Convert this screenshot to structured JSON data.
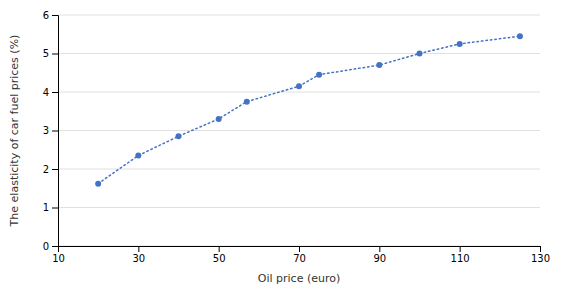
{
  "chart_data": {
    "type": "line",
    "x": [
      20,
      30,
      40,
      50,
      57,
      70,
      75,
      90,
      100,
      110,
      125
    ],
    "values": [
      1.62,
      2.35,
      2.85,
      3.3,
      3.75,
      4.15,
      4.45,
      4.7,
      5.0,
      5.25,
      5.45
    ],
    "xlabel": "Oil price (euro)",
    "ylabel": "The elasticity of car fuel prices (%)",
    "xlim": [
      10,
      130
    ],
    "ylim": [
      0,
      6
    ],
    "xticks": [
      10,
      30,
      50,
      70,
      90,
      110,
      130
    ],
    "yticks": [
      0,
      1,
      2,
      3,
      4,
      5,
      6
    ],
    "color": "#4472C4",
    "marker": "circle",
    "line_style": "dotted",
    "grid": "y"
  }
}
